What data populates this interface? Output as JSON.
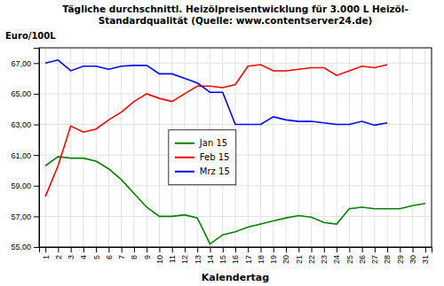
{
  "chart_data": {
    "type": "line",
    "title": "Tägliche durchschnittl. Heizölpreisentwicklung für 3.000 L Heizöl-\nStandardqualität (Quelle: www.contentserver24.de)",
    "x_label": "Kalendertag",
    "y_label": "Euro/100L",
    "x": [
      1,
      2,
      3,
      4,
      5,
      6,
      7,
      8,
      9,
      10,
      11,
      12,
      13,
      14,
      15,
      16,
      17,
      18,
      19,
      20,
      21,
      22,
      23,
      24,
      25,
      26,
      27,
      28,
      29,
      30,
      31
    ],
    "series": [
      {
        "name": "Jan 15",
        "color": "#008000",
        "values": [
          60.3,
          60.9,
          60.8,
          60.8,
          60.6,
          60.1,
          59.4,
          58.5,
          57.6,
          57.0,
          57.0,
          57.1,
          56.9,
          55.2,
          55.8,
          56.0,
          56.3,
          56.5,
          56.7,
          56.9,
          57.05,
          56.95,
          56.6,
          56.5,
          57.5,
          57.6,
          57.5,
          57.5,
          57.5,
          57.7,
          57.85
        ]
      },
      {
        "name": "Feb 15",
        "color": "#FF0000",
        "values": [
          58.3,
          60.3,
          62.9,
          62.5,
          62.7,
          63.3,
          63.8,
          64.5,
          65.0,
          64.7,
          64.5,
          65.0,
          65.5,
          65.5,
          65.4,
          65.6,
          66.8,
          66.9,
          66.5,
          66.5,
          66.6,
          66.7,
          66.7,
          66.2,
          66.5,
          66.8,
          66.7,
          66.9,
          null,
          null,
          null
        ]
      },
      {
        "name": "Mrz 15",
        "color": "#0000FF",
        "values": [
          67.0,
          67.2,
          66.5,
          66.8,
          66.8,
          66.6,
          66.8,
          66.85,
          66.85,
          66.3,
          66.3,
          66.0,
          65.7,
          65.1,
          65.1,
          63.0,
          63.0,
          63.0,
          63.5,
          63.3,
          63.2,
          63.2,
          63.1,
          63.0,
          63.0,
          63.2,
          62.95,
          63.1,
          null,
          null,
          null
        ]
      }
    ],
    "xlim": [
      0.5,
      31.5
    ],
    "xticks": [
      1,
      2,
      3,
      4,
      5,
      6,
      7,
      8,
      9,
      10,
      11,
      12,
      13,
      14,
      15,
      16,
      17,
      18,
      19,
      20,
      21,
      22,
      23,
      24,
      25,
      26,
      27,
      28,
      29,
      30,
      31
    ],
    "ylim": [
      55.0,
      68.0
    ],
    "yticks": [
      {
        "value": 55.0,
        "label": "55,00"
      },
      {
        "value": 57.0,
        "label": "57,00"
      },
      {
        "value": 59.0,
        "label": "59,00"
      },
      {
        "value": 61.0,
        "label": "61,00"
      },
      {
        "value": 63.0,
        "label": "63,00"
      },
      {
        "value": 65.0,
        "label": "65,00"
      },
      {
        "value": 67.0,
        "label": "67,00"
      }
    ],
    "grid": true,
    "legend": "center"
  }
}
